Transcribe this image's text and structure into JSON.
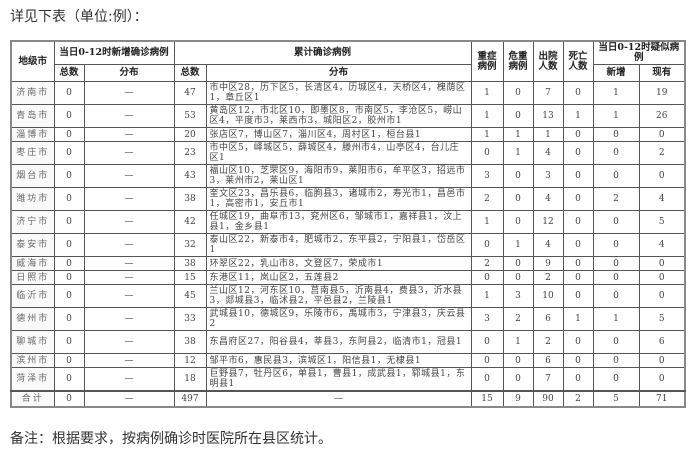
{
  "caption": "详见下表（单位:例）：",
  "note": "备注：根据要求，按病例确诊时医院所在县区统计。",
  "headers": {
    "city": "地级市",
    "new_group": "当日0-12时新增确诊病例",
    "cum_group": "累计确诊病例",
    "severe": "重症病例",
    "critical": "危重病例",
    "discharged": "出院人数",
    "deaths": "死亡人数",
    "suspect_group": "当日0-12时疑似病例",
    "total": "总数",
    "dist": "分布",
    "cum_total": "总数",
    "cum_dist": "分布",
    "suspect_new": "新增",
    "suspect_current": "现有"
  },
  "rows": [
    {
      "city": "济南市",
      "new": "0",
      "new_dist": "—",
      "cum": "47",
      "cum_dist": "市中区28，历下区5，长清区4，历城区4，天桥区4，槐荫区1，章丘区1",
      "severe": "1",
      "critical": "0",
      "discharged": "7",
      "deaths": "0",
      "s_new": "1",
      "s_cur": "19",
      "lines": 2
    },
    {
      "city": "青岛市",
      "new": "0",
      "new_dist": "—",
      "cum": "53",
      "cum_dist": "黄岛区12，市北区10，即墨区8，市南区5，李沧区5，崂山区4，平度市3，莱西市3，城阳区2，胶州市1",
      "severe": "1",
      "critical": "0",
      "discharged": "13",
      "deaths": "1",
      "s_new": "1",
      "s_cur": "26",
      "lines": 2
    },
    {
      "city": "淄博市",
      "new": "0",
      "new_dist": "—",
      "cum": "20",
      "cum_dist": "张店区7，博山区7，淄川区4，周村区1，桓台县1",
      "severe": "1",
      "critical": "1",
      "discharged": "1",
      "deaths": "0",
      "s_new": "0",
      "s_cur": "0",
      "lines": 1
    },
    {
      "city": "枣庄市",
      "new": "0",
      "new_dist": "—",
      "cum": "23",
      "cum_dist": "市中区5，峄城区5，薛城区4，滕州市4，山亭区4，台儿庄区1",
      "severe": "0",
      "critical": "1",
      "discharged": "4",
      "deaths": "0",
      "s_new": "0",
      "s_cur": "2",
      "lines": 2
    },
    {
      "city": "烟台市",
      "new": "0",
      "new_dist": "—",
      "cum": "43",
      "cum_dist": "福山区10，芝罘区9，海阳市9，莱阳市6，牟平区3，招远市3，莱州市2，莱山区1",
      "severe": "3",
      "critical": "0",
      "discharged": "3",
      "deaths": "0",
      "s_new": "0",
      "s_cur": "0",
      "lines": 2
    },
    {
      "city": "潍坊市",
      "new": "0",
      "new_dist": "—",
      "cum": "38",
      "cum_dist": "奎文区23，昌乐县6，临朐县3，诸城市2，寿光市1，昌邑市1，高密市1，安丘市1",
      "severe": "2",
      "critical": "0",
      "discharged": "4",
      "deaths": "0",
      "s_new": "2",
      "s_cur": "4",
      "lines": 2
    },
    {
      "city": "济宁市",
      "new": "0",
      "new_dist": "—",
      "cum": "42",
      "cum_dist": "任城区19，曲阜市13，兖州区6，邹城市1，嘉祥县1，汶上县1，金乡县1",
      "severe": "1",
      "critical": "0",
      "discharged": "12",
      "deaths": "0",
      "s_new": "0",
      "s_cur": "5",
      "lines": 2
    },
    {
      "city": "泰安市",
      "new": "0",
      "new_dist": "—",
      "cum": "32",
      "cum_dist": "泰山区22，新泰市4，肥城市2，东平县2，宁阳县1，岱岳区1",
      "severe": "0",
      "critical": "1",
      "discharged": "4",
      "deaths": "0",
      "s_new": "0",
      "s_cur": "4",
      "lines": 2
    },
    {
      "city": "威海市",
      "new": "0",
      "new_dist": "—",
      "cum": "38",
      "cum_dist": "环翠区22，乳山市8，文登区7，荣成市1",
      "severe": "2",
      "critical": "0",
      "discharged": "9",
      "deaths": "0",
      "s_new": "0",
      "s_cur": "0",
      "lines": 1
    },
    {
      "city": "日照市",
      "new": "0",
      "new_dist": "—",
      "cum": "15",
      "cum_dist": "东港区11，岚山区2，五莲县2",
      "severe": "0",
      "critical": "0",
      "discharged": "2",
      "deaths": "0",
      "s_new": "0",
      "s_cur": "0",
      "lines": 1
    },
    {
      "city": "临沂市",
      "new": "0",
      "new_dist": "—",
      "cum": "45",
      "cum_dist": "兰山区12，河东区10，莒南县5，沂南县4，费县3，沂水县3，郯城县3，临沭县2，平邑县2，兰陵县1",
      "severe": "1",
      "critical": "3",
      "discharged": "10",
      "deaths": "0",
      "s_new": "0",
      "s_cur": "0",
      "lines": 2
    },
    {
      "city": "德州市",
      "new": "0",
      "new_dist": "—",
      "cum": "33",
      "cum_dist": "武城县10，德城区9，乐陵市6，禹城市3，宁津县3，庆云县2",
      "severe": "3",
      "critical": "2",
      "discharged": "6",
      "deaths": "1",
      "s_new": "1",
      "s_cur": "5",
      "lines": 2
    },
    {
      "city": "聊城市",
      "new": "0",
      "new_dist": "—",
      "cum": "38",
      "cum_dist": "东昌府区27，阳谷县4，莘县3，东阿县2，临清市1，冠县1",
      "severe": "0",
      "critical": "1",
      "discharged": "2",
      "deaths": "0",
      "s_new": "0",
      "s_cur": "6",
      "lines": 2
    },
    {
      "city": "滨州市",
      "new": "0",
      "new_dist": "—",
      "cum": "12",
      "cum_dist": "邹平市6，惠民县3，滨城区1，阳信县1，无棣县1",
      "severe": "0",
      "critical": "0",
      "discharged": "6",
      "deaths": "0",
      "s_new": "0",
      "s_cur": "0",
      "lines": 1
    },
    {
      "city": "菏泽市",
      "new": "0",
      "new_dist": "—",
      "cum": "18",
      "cum_dist": "巨野县7，牡丹区6，单县1，曹县1，成武县1，郓城县1，东明县1",
      "severe": "0",
      "critical": "0",
      "discharged": "7",
      "deaths": "0",
      "s_new": "0",
      "s_cur": "0",
      "lines": 2
    }
  ],
  "total": {
    "city": "合计",
    "new": "0",
    "new_dist": "—",
    "cum": "497",
    "cum_dist": "—",
    "severe": "15",
    "critical": "9",
    "discharged": "90",
    "deaths": "2",
    "s_new": "5",
    "s_cur": "71"
  }
}
